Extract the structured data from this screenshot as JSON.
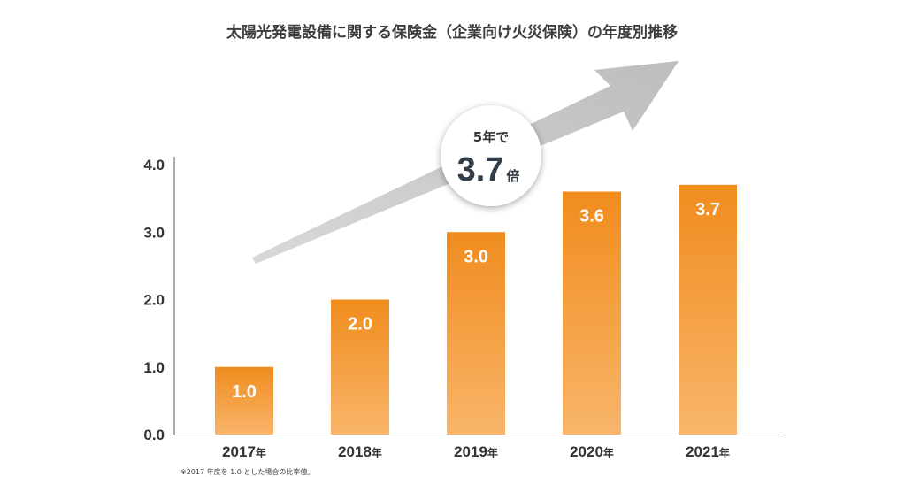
{
  "chart_data": {
    "type": "bar",
    "title": "太陽光発電設備に関する保険金（企業向け火災保険）の年度別推移",
    "categories": [
      "2017",
      "2018",
      "2019",
      "2020",
      "2021"
    ],
    "category_suffix": "年",
    "values": [
      1.0,
      2.0,
      3.0,
      3.6,
      3.7
    ],
    "data_labels": [
      "1.0",
      "2.0",
      "3.0",
      "3.6",
      "3.7"
    ],
    "yticks": [
      "0.0",
      "1.0",
      "2.0",
      "3.0",
      "4.0"
    ],
    "ytick_values": [
      0,
      1,
      2,
      3,
      4
    ],
    "ylim": [
      0,
      4
    ],
    "xlabel": "",
    "ylabel": "",
    "grid": false,
    "legend": "none",
    "bar_color_top": "#f08c1e",
    "bar_color_bottom": "#f9b56a",
    "arrow_color": "#c9c9c9",
    "callout": {
      "line1": "5年で",
      "value": "3.7",
      "suffix": "倍"
    },
    "footnote": "※2017 年度を 1.0 とした場合の比率値。"
  }
}
